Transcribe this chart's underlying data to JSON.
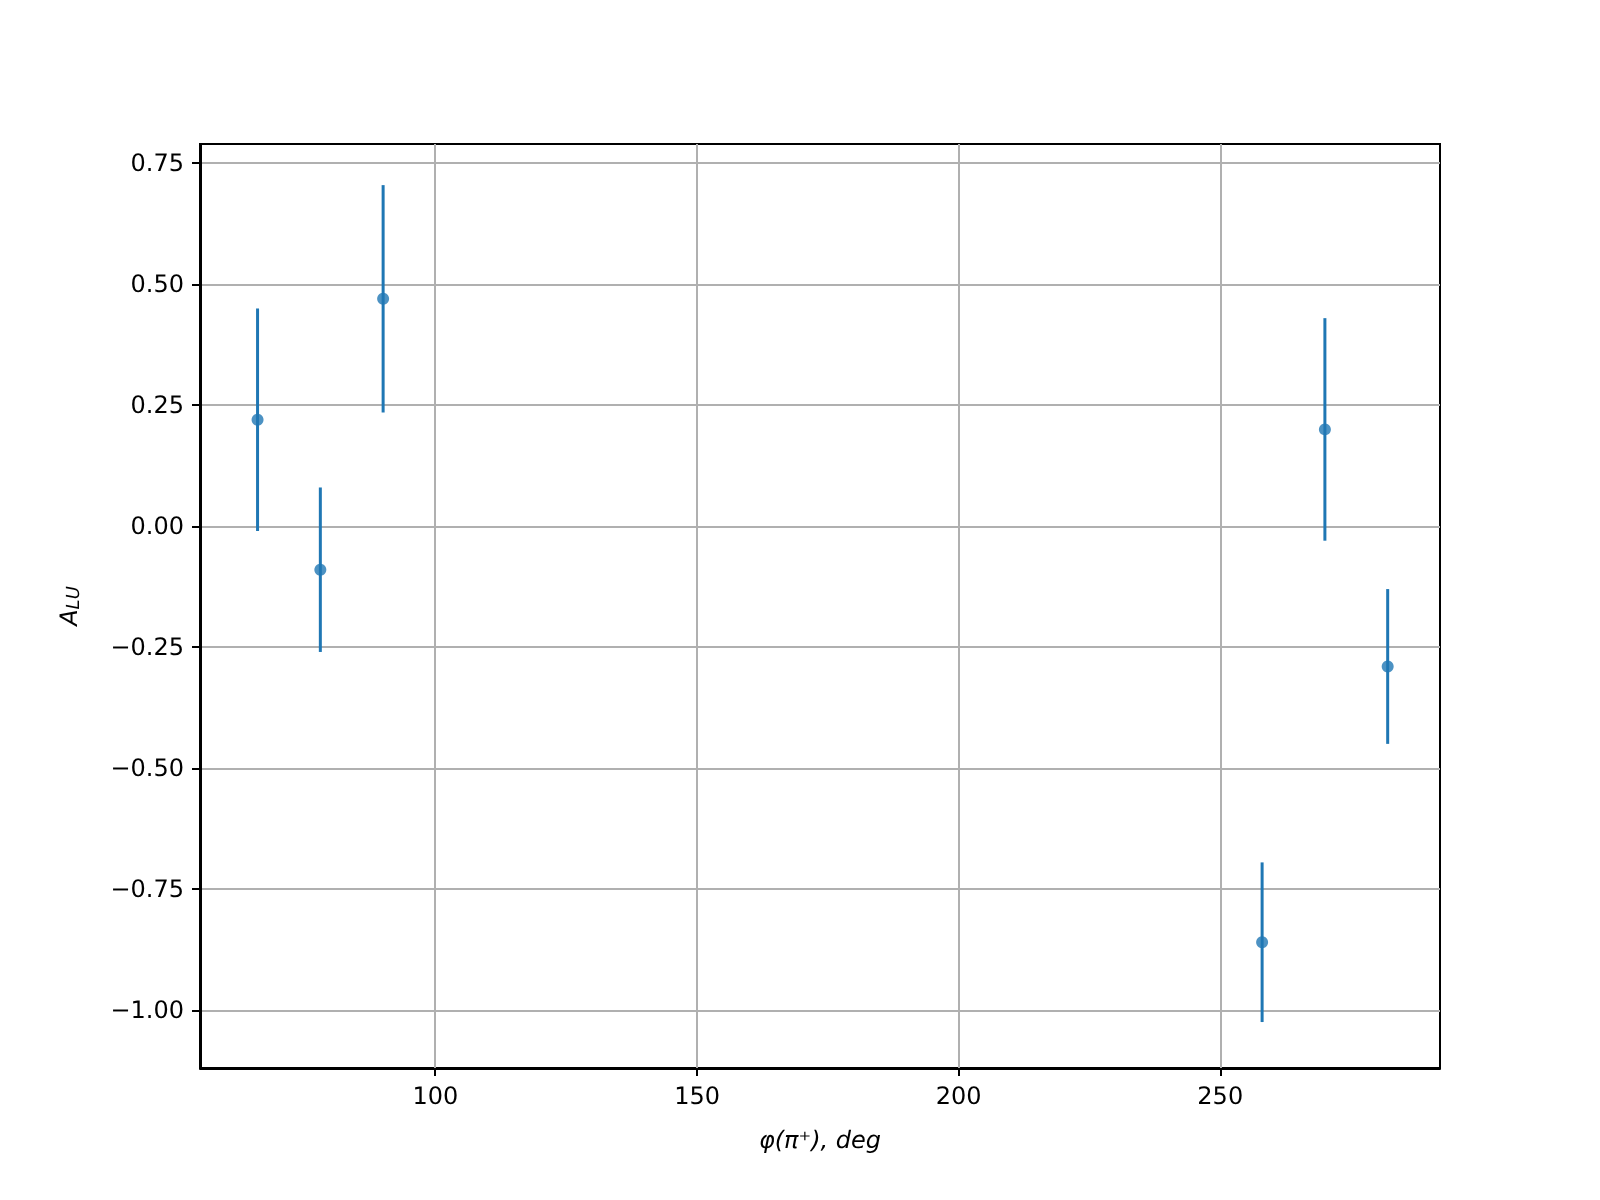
{
  "chart_data": {
    "type": "scatter",
    "xlabel": "φ(π⁺), deg",
    "ylabel": "A$_{LU}$",
    "x": [
      66,
      78,
      90,
      258,
      270,
      282
    ],
    "series": [
      {
        "color": "#1f77b4",
        "values": [
          0.22,
          -0.09,
          0.47,
          -0.86,
          0.2,
          -0.29
        ],
        "errors": [
          0.23,
          0.17,
          0.235,
          0.165,
          0.23,
          0.16
        ]
      }
    ],
    "xlim": [
      55,
      292
    ],
    "xticks": [
      100,
      150,
      200,
      250
    ],
    "ylim": [
      -1.12,
      0.79
    ],
    "yticks": [
      {
        "value": -1,
        "label": "−1.00"
      },
      {
        "value": -0.75,
        "label": "−0.75"
      },
      {
        "value": -0.5,
        "label": "−0.50"
      },
      {
        "value": -0.25,
        "label": "−0.25"
      },
      {
        "value": 0,
        "label": "0.00"
      },
      {
        "value": 0.25,
        "label": "0.25"
      },
      {
        "value": 0.5,
        "label": "0.50"
      },
      {
        "value": 0.75,
        "label": "0.75"
      }
    ],
    "grid": true,
    "marker": "circle"
  }
}
